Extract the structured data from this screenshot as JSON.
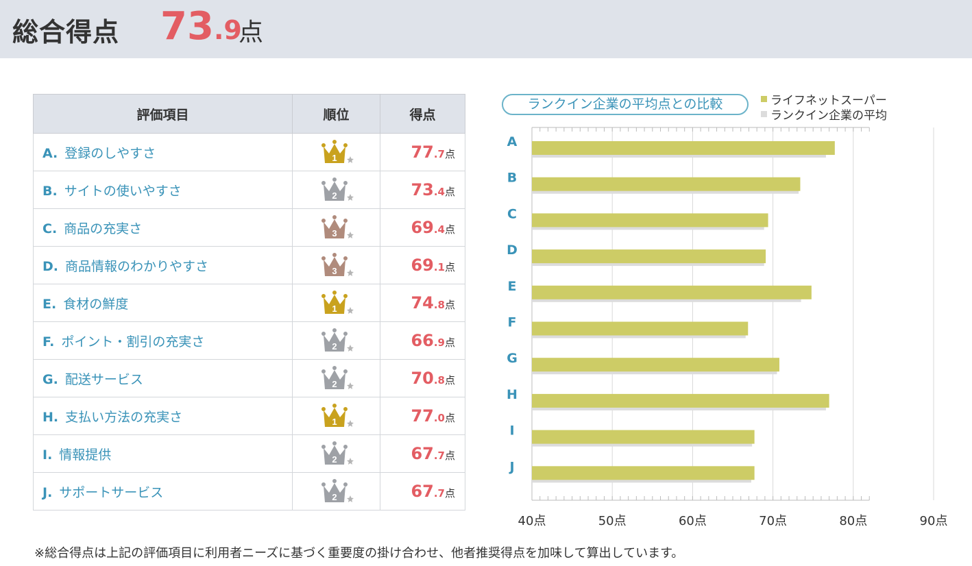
{
  "header": {
    "label": "総合得点",
    "score_int": "73",
    "score_dec": ".9",
    "unit": "点"
  },
  "table": {
    "headers": [
      "評価項目",
      "順位",
      "得点"
    ],
    "rows": [
      {
        "letter": "A.",
        "name": "登録のしやすさ",
        "rank": 1,
        "score_int": "77",
        "score_dec": ".7",
        "unit": "点"
      },
      {
        "letter": "B.",
        "name": "サイトの使いやすさ",
        "rank": 2,
        "score_int": "73",
        "score_dec": ".4",
        "unit": "点"
      },
      {
        "letter": "C.",
        "name": "商品の充実さ",
        "rank": 3,
        "score_int": "69",
        "score_dec": ".4",
        "unit": "点"
      },
      {
        "letter": "D.",
        "name": "商品情報のわかりやすさ",
        "rank": 3,
        "score_int": "69",
        "score_dec": ".1",
        "unit": "点"
      },
      {
        "letter": "E.",
        "name": "食材の鮮度",
        "rank": 1,
        "score_int": "74",
        "score_dec": ".8",
        "unit": "点"
      },
      {
        "letter": "F.",
        "name": "ポイント・割引の充実さ",
        "rank": 2,
        "score_int": "66",
        "score_dec": ".9",
        "unit": "点"
      },
      {
        "letter": "G.",
        "name": "配送サービス",
        "rank": 2,
        "score_int": "70",
        "score_dec": ".8",
        "unit": "点"
      },
      {
        "letter": "H.",
        "name": "支払い方法の充実さ",
        "rank": 1,
        "score_int": "77",
        "score_dec": ".0",
        "unit": "点"
      },
      {
        "letter": "I.",
        "name": "情報提供",
        "rank": 2,
        "score_int": "67",
        "score_dec": ".7",
        "unit": "点"
      },
      {
        "letter": "J.",
        "name": "サポートサービス",
        "rank": 2,
        "score_int": "67",
        "score_dec": ".7",
        "unit": "点"
      }
    ]
  },
  "rank_colors": {
    "1": "#c9a21e",
    "2": "#9ea1a6",
    "3": "#b08b7c"
  },
  "comparison_label": "ランクイン企業の平均点との比較",
  "chart_data": {
    "type": "bar",
    "orientation": "horizontal",
    "categories": [
      "A",
      "B",
      "C",
      "D",
      "E",
      "F",
      "G",
      "H",
      "I",
      "J"
    ],
    "series": [
      {
        "name": "ライフネットスーパー",
        "color": "#cdcc66",
        "values": [
          77.7,
          73.4,
          69.4,
          69.1,
          74.8,
          66.9,
          70.8,
          77.0,
          67.7,
          67.7
        ]
      },
      {
        "name": "ランクイン企業の平均",
        "color": "#dcdcdc",
        "values": [
          76.6,
          73.2,
          68.9,
          68.9,
          73.5,
          66.6,
          70.5,
          76.6,
          67.4,
          67.3
        ]
      }
    ],
    "xlim": [
      40,
      90
    ],
    "xticks": [
      "40点",
      "50点",
      "60点",
      "70点",
      "80点",
      "90点"
    ],
    "grid": true,
    "legend": "top-right"
  },
  "footnote": "※総合得点は上記の評価項目に利用者ニーズに基づく重要度の掛け合わせ、他者推奨得点を加味して算出しています。"
}
